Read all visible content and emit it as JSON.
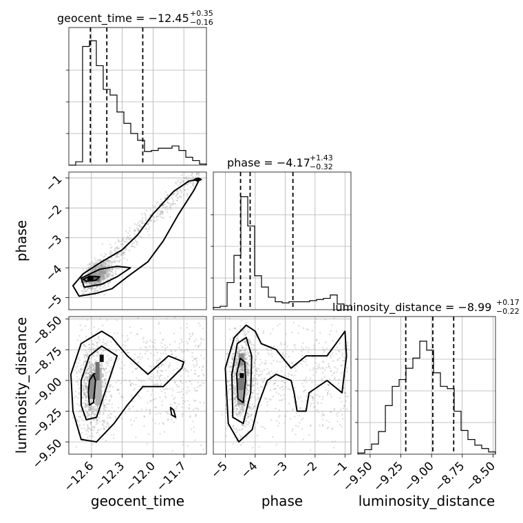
{
  "chart_data": {
    "type": "corner",
    "parameters": [
      {
        "name": "geocent_time",
        "axis_label": "geocent_time",
        "title_main": "geocent_time = −12.45",
        "title_plus": "+0.35",
        "title_minus": "−0.16",
        "range": [
          -12.82,
          -11.48
        ],
        "ticks": [
          -12.6,
          -12.3,
          -12.0,
          -11.7
        ],
        "tick_labels": [
          "−12.6",
          "−12.3",
          "−12.0",
          "−11.7"
        ],
        "quantiles": [
          -12.61,
          -12.45,
          -12.1
        ],
        "hist_values": [
          0.0,
          0.03,
          1.05,
          1.1,
          0.88,
          0.67,
          0.62,
          0.47,
          0.37,
          0.28,
          0.22,
          0.12,
          0.13,
          0.15,
          0.15,
          0.17,
          0.13,
          0.07,
          0.04,
          0.01
        ]
      },
      {
        "name": "phase",
        "axis_label": "phase",
        "title_main": "phase = −4.17",
        "title_plus": "+1.43",
        "title_minus": "−0.32",
        "range": [
          -5.4,
          -0.8
        ],
        "ticks": [
          -5,
          -4,
          -3,
          -2,
          -1
        ],
        "tick_labels": [
          "−5",
          "−4",
          "−3",
          "−2",
          "−1"
        ],
        "quantiles": [
          -4.49,
          -4.17,
          -2.74
        ],
        "hist_values": [
          0.02,
          0.03,
          0.24,
          0.48,
          1.0,
          0.74,
          0.3,
          0.2,
          0.11,
          0.07,
          0.06,
          0.07,
          0.07,
          0.07,
          0.08,
          0.09,
          0.1,
          0.13,
          0.05,
          0.0
        ]
      },
      {
        "name": "luminosity_distance",
        "axis_label": "luminosity_distance",
        "title_main": "luminosity_distance = −8.99",
        "title_plus": "+0.17",
        "title_minus": "−0.22",
        "range": [
          -9.6,
          -8.48
        ],
        "ticks": [
          -9.5,
          -9.25,
          -9.0,
          -8.75,
          -8.5
        ],
        "tick_labels": [
          "−9.50",
          "−9.25",
          "−9.00",
          "−8.75",
          "−8.50"
        ],
        "quantiles": [
          -9.21,
          -8.99,
          -8.82
        ],
        "hist_values": [
          0.01,
          0.04,
          0.09,
          0.2,
          0.43,
          0.6,
          0.66,
          0.76,
          0.85,
          1.0,
          0.92,
          0.72,
          0.6,
          0.58,
          0.38,
          0.21,
          0.13,
          0.08,
          0.05,
          0.02
        ]
      }
    ],
    "y_tick_labels": {
      "phase": [
        "−5",
        "−4",
        "−3",
        "−2",
        "−1"
      ],
      "luminosity_distance": [
        "−9.50",
        "−9.25",
        "−9.00",
        "−8.75",
        "−8.50"
      ]
    },
    "contour_levels": [
      "inner",
      "middle",
      "outer"
    ],
    "grid": true
  }
}
